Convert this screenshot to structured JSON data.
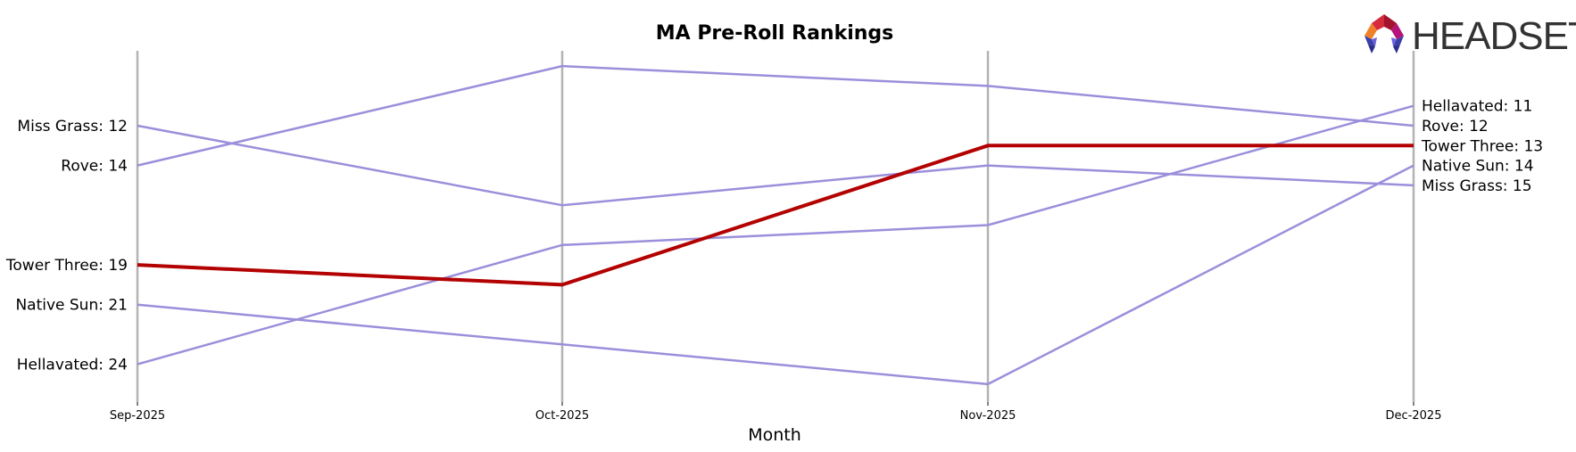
{
  "chart_data": {
    "type": "line",
    "title": "MA Pre-Roll Rankings",
    "xlabel": "Month",
    "ylabel": "",
    "categories": [
      "Sep-2025",
      "Oct-2025",
      "Nov-2025",
      "Dec-2025"
    ],
    "y_inverted": true,
    "ylim": [
      8,
      26
    ],
    "grid": "vertical lines at each month",
    "legend": "none (inline start/end labels)",
    "highlight_series": "Tower Three",
    "series": [
      {
        "name": "Miss Grass",
        "values": [
          12,
          16,
          14,
          15
        ],
        "color": "#9b8fdb"
      },
      {
        "name": "Rove",
        "values": [
          14,
          9,
          10,
          12
        ],
        "color": "#9b8fdb"
      },
      {
        "name": "Tower Three",
        "values": [
          19,
          20,
          13,
          13
        ],
        "color": "#b30000"
      },
      {
        "name": "Native Sun",
        "values": [
          21,
          23,
          25,
          14
        ],
        "color": "#9b8fdb"
      },
      {
        "name": "Hellavated",
        "values": [
          24,
          18,
          17,
          11
        ],
        "color": "#9b8fdb"
      }
    ]
  },
  "title": "MA Pre-Roll Rankings",
  "xlabel": "Month",
  "ticks": [
    "Sep-2025",
    "Oct-2025",
    "Nov-2025",
    "Dec-2025"
  ],
  "left_labels": [
    {
      "text": "Miss Grass: 12",
      "highlight": false
    },
    {
      "text": "Rove: 14",
      "highlight": false
    },
    {
      "text": "Tower Three: 19",
      "highlight": true
    },
    {
      "text": "Native Sun: 21",
      "highlight": false
    },
    {
      "text": "Hellavated: 24",
      "highlight": false
    }
  ],
  "right_labels": [
    {
      "text": "Hellavated: 11",
      "highlight": false
    },
    {
      "text": "Rove: 12",
      "highlight": false
    },
    {
      "text": "Tower Three: 13",
      "highlight": true
    },
    {
      "text": "Native Sun: 14",
      "highlight": false
    },
    {
      "text": "Miss Grass: 15",
      "highlight": false
    }
  ],
  "logo": {
    "text": "HEADSET",
    "icon": "headset-logo-icon"
  },
  "colors": {
    "highlight": "#b30000",
    "other": "#9b8fdb",
    "grid": "#b3b3b3",
    "text": "#000000"
  }
}
